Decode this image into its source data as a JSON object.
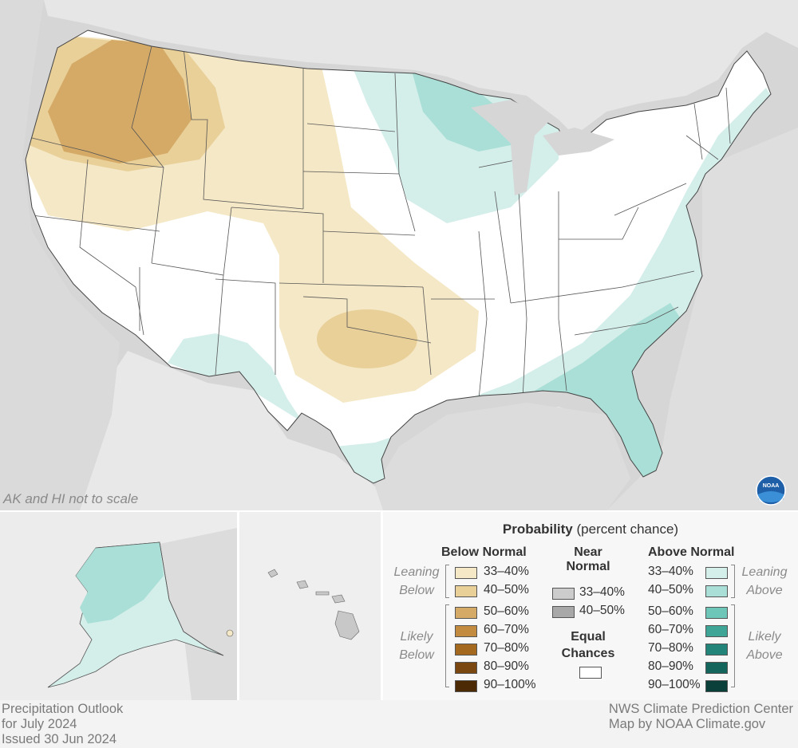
{
  "map": {
    "not_to_scale_note": "AK and HI not to scale",
    "colors": {
      "below_33_40": "#f5e8c6",
      "below_40_50": "#e9cf98",
      "below_50_60": "#d4aa66",
      "below_60_70": "#c28b3f",
      "below_70_80": "#a5681f",
      "below_80_90": "#7a4711",
      "below_90_100": "#4d2a06",
      "near_33_40": "#cccccc",
      "near_40_50": "#a8a8a8",
      "equal": "#ffffff",
      "above_33_40": "#d4eeea",
      "above_40_50": "#a9dfd6",
      "above_50_60": "#6ec6b8",
      "above_60_70": "#3fa597",
      "above_70_80": "#23857a",
      "above_80_90": "#14665d",
      "above_90_100": "#0b3f39"
    }
  },
  "legend": {
    "title_bold": "Probability",
    "title_rest": "(percent chance)",
    "below_header": "Below Normal",
    "near_header_line1": "Near",
    "near_header_line2": "Normal",
    "above_header": "Above Normal",
    "equal_line1": "Equal",
    "equal_line2": "Chances",
    "leaning_below_1": "Leaning",
    "leaning_below_2": "Below",
    "likely_below_1": "Likely",
    "likely_below_2": "Below",
    "leaning_above_1": "Leaning",
    "leaning_above_2": "Above",
    "likely_above_1": "Likely",
    "likely_above_2": "Above",
    "below_items": [
      "33–40%",
      "40–50%",
      "50–60%",
      "60–70%",
      "70–80%",
      "80–90%",
      "90–100%"
    ],
    "near_items": [
      "33–40%",
      "40–50%"
    ],
    "above_items": [
      "33–40%",
      "40–50%",
      "50–60%",
      "60–70%",
      "70–80%",
      "80–90%",
      "90–100%"
    ]
  },
  "footer": {
    "left_line1": "Precipitation Outlook",
    "left_line2": "for July 2024",
    "left_line3": "Issued 30 Jun 2024",
    "right_line1": "NWS Climate Prediction Center",
    "right_line2": "Map by NOAA Climate.gov"
  },
  "logo_text": "NOAA"
}
